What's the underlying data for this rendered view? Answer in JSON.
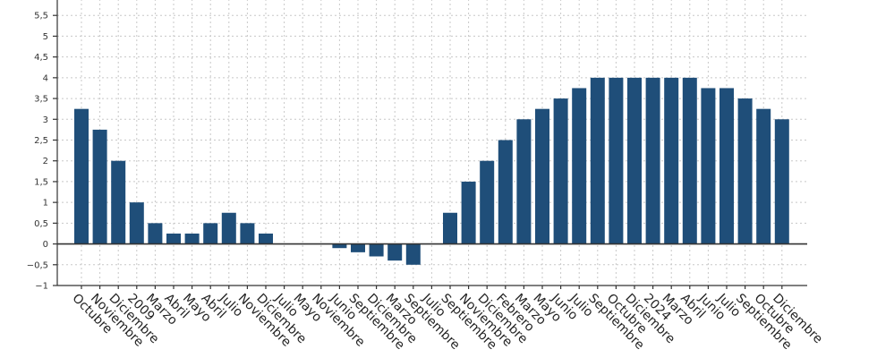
{
  "chart_data": {
    "type": "bar",
    "title": "",
    "xlabel": "",
    "ylabel": "",
    "ylim": [
      -1,
      6
    ],
    "ytick_step": 0.5,
    "grid": true,
    "bar_color": "#1f4e79",
    "categories": [
      "Octubre",
      "Noviembre",
      "Diciembre",
      "2009",
      "Marzo",
      "Abril",
      "Mayo",
      "Abril",
      "Julio",
      "Noviembre",
      "Diciembre",
      "Julio",
      "Mayo",
      "Noviembre",
      "Junio",
      "Septiembre",
      "Diciembre",
      "Marzo",
      "Septiembre",
      "Julio",
      "Septiembre",
      "Noviembre",
      "Diciembre",
      "Febrero",
      "Marzo",
      "Mayo",
      "Junio",
      "Julio",
      "Septiembre",
      "Octubre",
      "Diciembre",
      "2024",
      "Marzo",
      "Abril",
      "Junio",
      "Julio",
      "Septiembre",
      "Octubre",
      "Diciembre"
    ],
    "values": [
      3.25,
      2.75,
      2.0,
      1.0,
      0.5,
      0.25,
      0.25,
      0.5,
      0.75,
      0.5,
      0.25,
      0,
      0,
      0,
      -0.1,
      -0.2,
      -0.3,
      -0.4,
      -0.5,
      0,
      0.75,
      1.5,
      2.0,
      2.5,
      3.0,
      3.25,
      3.5,
      3.75,
      4.0,
      4.0,
      4.0,
      4.0,
      4.0,
      4.0,
      3.75,
      3.75,
      3.5,
      3.25,
      3.0
    ]
  }
}
